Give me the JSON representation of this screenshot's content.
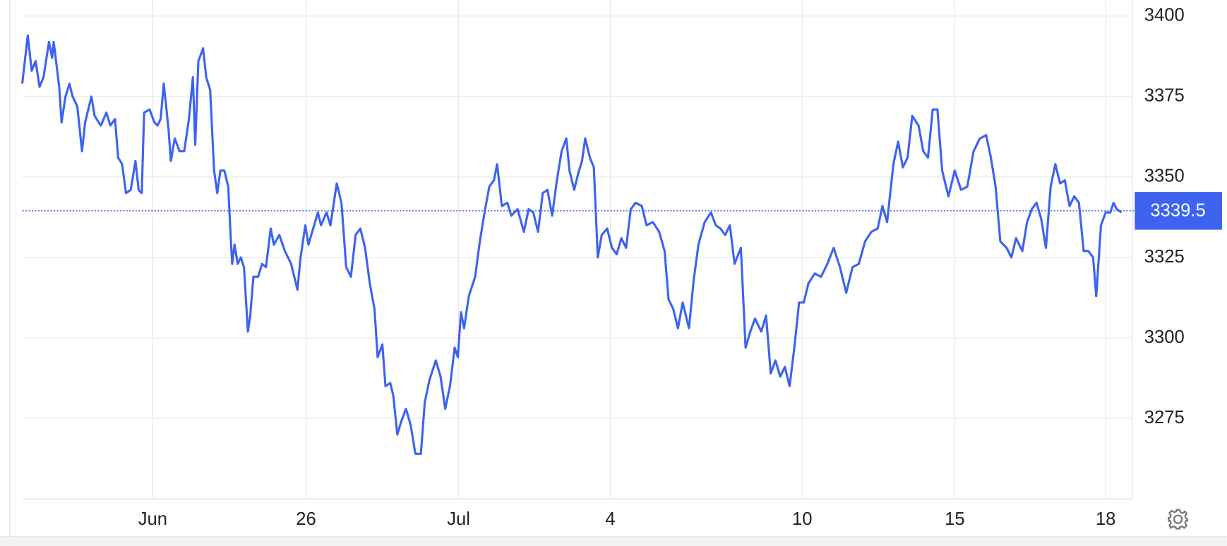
{
  "chart_data": {
    "type": "line",
    "x": [
      28,
      35,
      40,
      45,
      50,
      55,
      62,
      66,
      68,
      75,
      78,
      83,
      88,
      92,
      98,
      104,
      108,
      116,
      120,
      128,
      135,
      140,
      146,
      150,
      155,
      160,
      166,
      172,
      176,
      180,
      183,
      190,
      196,
      200,
      204,
      208,
      214,
      217,
      222,
      228,
      234,
      240,
      245,
      248,
      252,
      258,
      262,
      267,
      272,
      276,
      280,
      285,
      290,
      293,
      295,
      298,
      302,
      306,
      310,
      315,
      318,
      322,
      328,
      333,
      338,
      344,
      348,
      355,
      362,
      370,
      378,
      382,
      388,
      392,
      398,
      404,
      408,
      415,
      420,
      428,
      434,
      440,
      446,
      452,
      458,
      464,
      470,
      476,
      480,
      486,
      490,
      496,
      500,
      505,
      510,
      516,
      522,
      528,
      535,
      540,
      546,
      554,
      560,
      566,
      572,
      578,
      582,
      586,
      590,
      596,
      604,
      610,
      616,
      622,
      628,
      632,
      638,
      645,
      650,
      658,
      666,
      672,
      678,
      684,
      690,
      696,
      702,
      708,
      714,
      720,
      724,
      730,
      735,
      740,
      744,
      750,
      755,
      760,
      765,
      772,
      778,
      784,
      790,
      796,
      802,
      808,
      816,
      822,
      830,
      838,
      845,
      850,
      856,
      862,
      868,
      876,
      882,
      888,
      896,
      904,
      910,
      916,
      922,
      928,
      934,
      942,
      948,
      954,
      960,
      968,
      974,
      980,
      986,
      992,
      998,
      1004,
      1010,
      1016,
      1022,
      1028,
      1036,
      1044,
      1052,
      1060,
      1068,
      1076,
      1084,
      1092,
      1100,
      1108,
      1116,
      1122,
      1128,
      1136,
      1142,
      1148,
      1154,
      1160,
      1168,
      1174,
      1180,
      1186,
      1192,
      1198,
      1206,
      1214,
      1222,
      1230,
      1238,
      1246,
      1254,
      1260,
      1266,
      1272,
      1280,
      1286,
      1292,
      1300,
      1306,
      1312,
      1318,
      1324,
      1330,
      1336,
      1342,
      1348,
      1354,
      1360,
      1366,
      1372,
      1378,
      1384,
      1390,
      1394,
      1400,
      1406,
      1412,
      1416,
      1420,
      1426
    ],
    "series": [
      {
        "color": "#3d63f0",
        "values": [
          3379,
          3394,
          3383,
          3386,
          3378,
          3381,
          3392,
          3387,
          3392,
          3378,
          3367,
          3375,
          3379,
          3375,
          3372,
          3358,
          3367,
          3375,
          3369,
          3366,
          3370,
          3366,
          3368,
          3356,
          3354,
          3345,
          3346,
          3355,
          3346,
          3345,
          3370,
          3371,
          3367,
          3366,
          3368,
          3379,
          3365,
          3355,
          3362,
          3358,
          3358,
          3368,
          3381,
          3360,
          3386,
          3390,
          3381,
          3377,
          3352,
          3345,
          3352,
          3352,
          3347,
          3332,
          3323,
          3329,
          3323,
          3325,
          3322,
          3302,
          3307,
          3319,
          3319,
          3323,
          3322,
          3334,
          3329,
          3332,
          3327,
          3323,
          3315,
          3325,
          3335,
          3329,
          3334,
          3339,
          3335,
          3339,
          3335,
          3348,
          3342,
          3322,
          3319,
          3332,
          3334,
          3328,
          3317,
          3309,
          3294,
          3298,
          3285,
          3286,
          3282,
          3270,
          3274,
          3278,
          3273,
          3264,
          3264,
          3280,
          3287,
          3293,
          3288,
          3278,
          3285,
          3297,
          3294,
          3308,
          3303,
          3313,
          3319,
          3330,
          3339,
          3347,
          3349,
          3354,
          3341,
          3342,
          3338,
          3340,
          3333,
          3340,
          3339,
          3333,
          3345,
          3346,
          3338,
          3349,
          3358,
          3362,
          3352,
          3346,
          3351,
          3355,
          3362,
          3356,
          3353,
          3325,
          3332,
          3334,
          3328,
          3326,
          3331,
          3328,
          3340,
          3342,
          3341,
          3335,
          3336,
          3333,
          3327,
          3312,
          3309,
          3303,
          3311,
          3303,
          3318,
          3329,
          3336,
          3339,
          3335,
          3334,
          3332,
          3335,
          3323,
          3328,
          3297,
          3302,
          3306,
          3302,
          3307,
          3289,
          3293,
          3288,
          3291,
          3285,
          3297,
          3311,
          3311,
          3317,
          3320,
          3319,
          3323,
          3328,
          3322,
          3314,
          3322,
          3323,
          3330,
          3333,
          3334,
          3341,
          3336,
          3354,
          3361,
          3353,
          3356,
          3369,
          3366,
          3358,
          3356,
          3371,
          3371,
          3352,
          3344,
          3352,
          3346,
          3347,
          3358,
          3362,
          3363,
          3356,
          3347,
          3330,
          3328,
          3325,
          3331,
          3327,
          3336,
          3340,
          3342,
          3337,
          3328,
          3347,
          3354,
          3348,
          3349,
          3341,
          3344,
          3342,
          3327,
          3327,
          3325,
          3313,
          3335,
          3339,
          3339,
          3342,
          3340,
          3339
        ]
      }
    ],
    "last_value": 3339.5,
    "xlim": [
      12,
      1440
    ],
    "xticks": [
      {
        "value": 194,
        "label": "Jun"
      },
      {
        "value": 389,
        "label": "26"
      },
      {
        "value": 583,
        "label": "Jul"
      },
      {
        "value": 776,
        "label": "4"
      },
      {
        "value": 1020,
        "label": "10"
      },
      {
        "value": 1214,
        "label": "15"
      },
      {
        "value": 1406,
        "label": "18"
      }
    ],
    "ylim": [
      3250,
      3405
    ],
    "yticks": [
      3275,
      3300,
      3325,
      3350,
      3375,
      3400
    ],
    "grid": true
  }
}
